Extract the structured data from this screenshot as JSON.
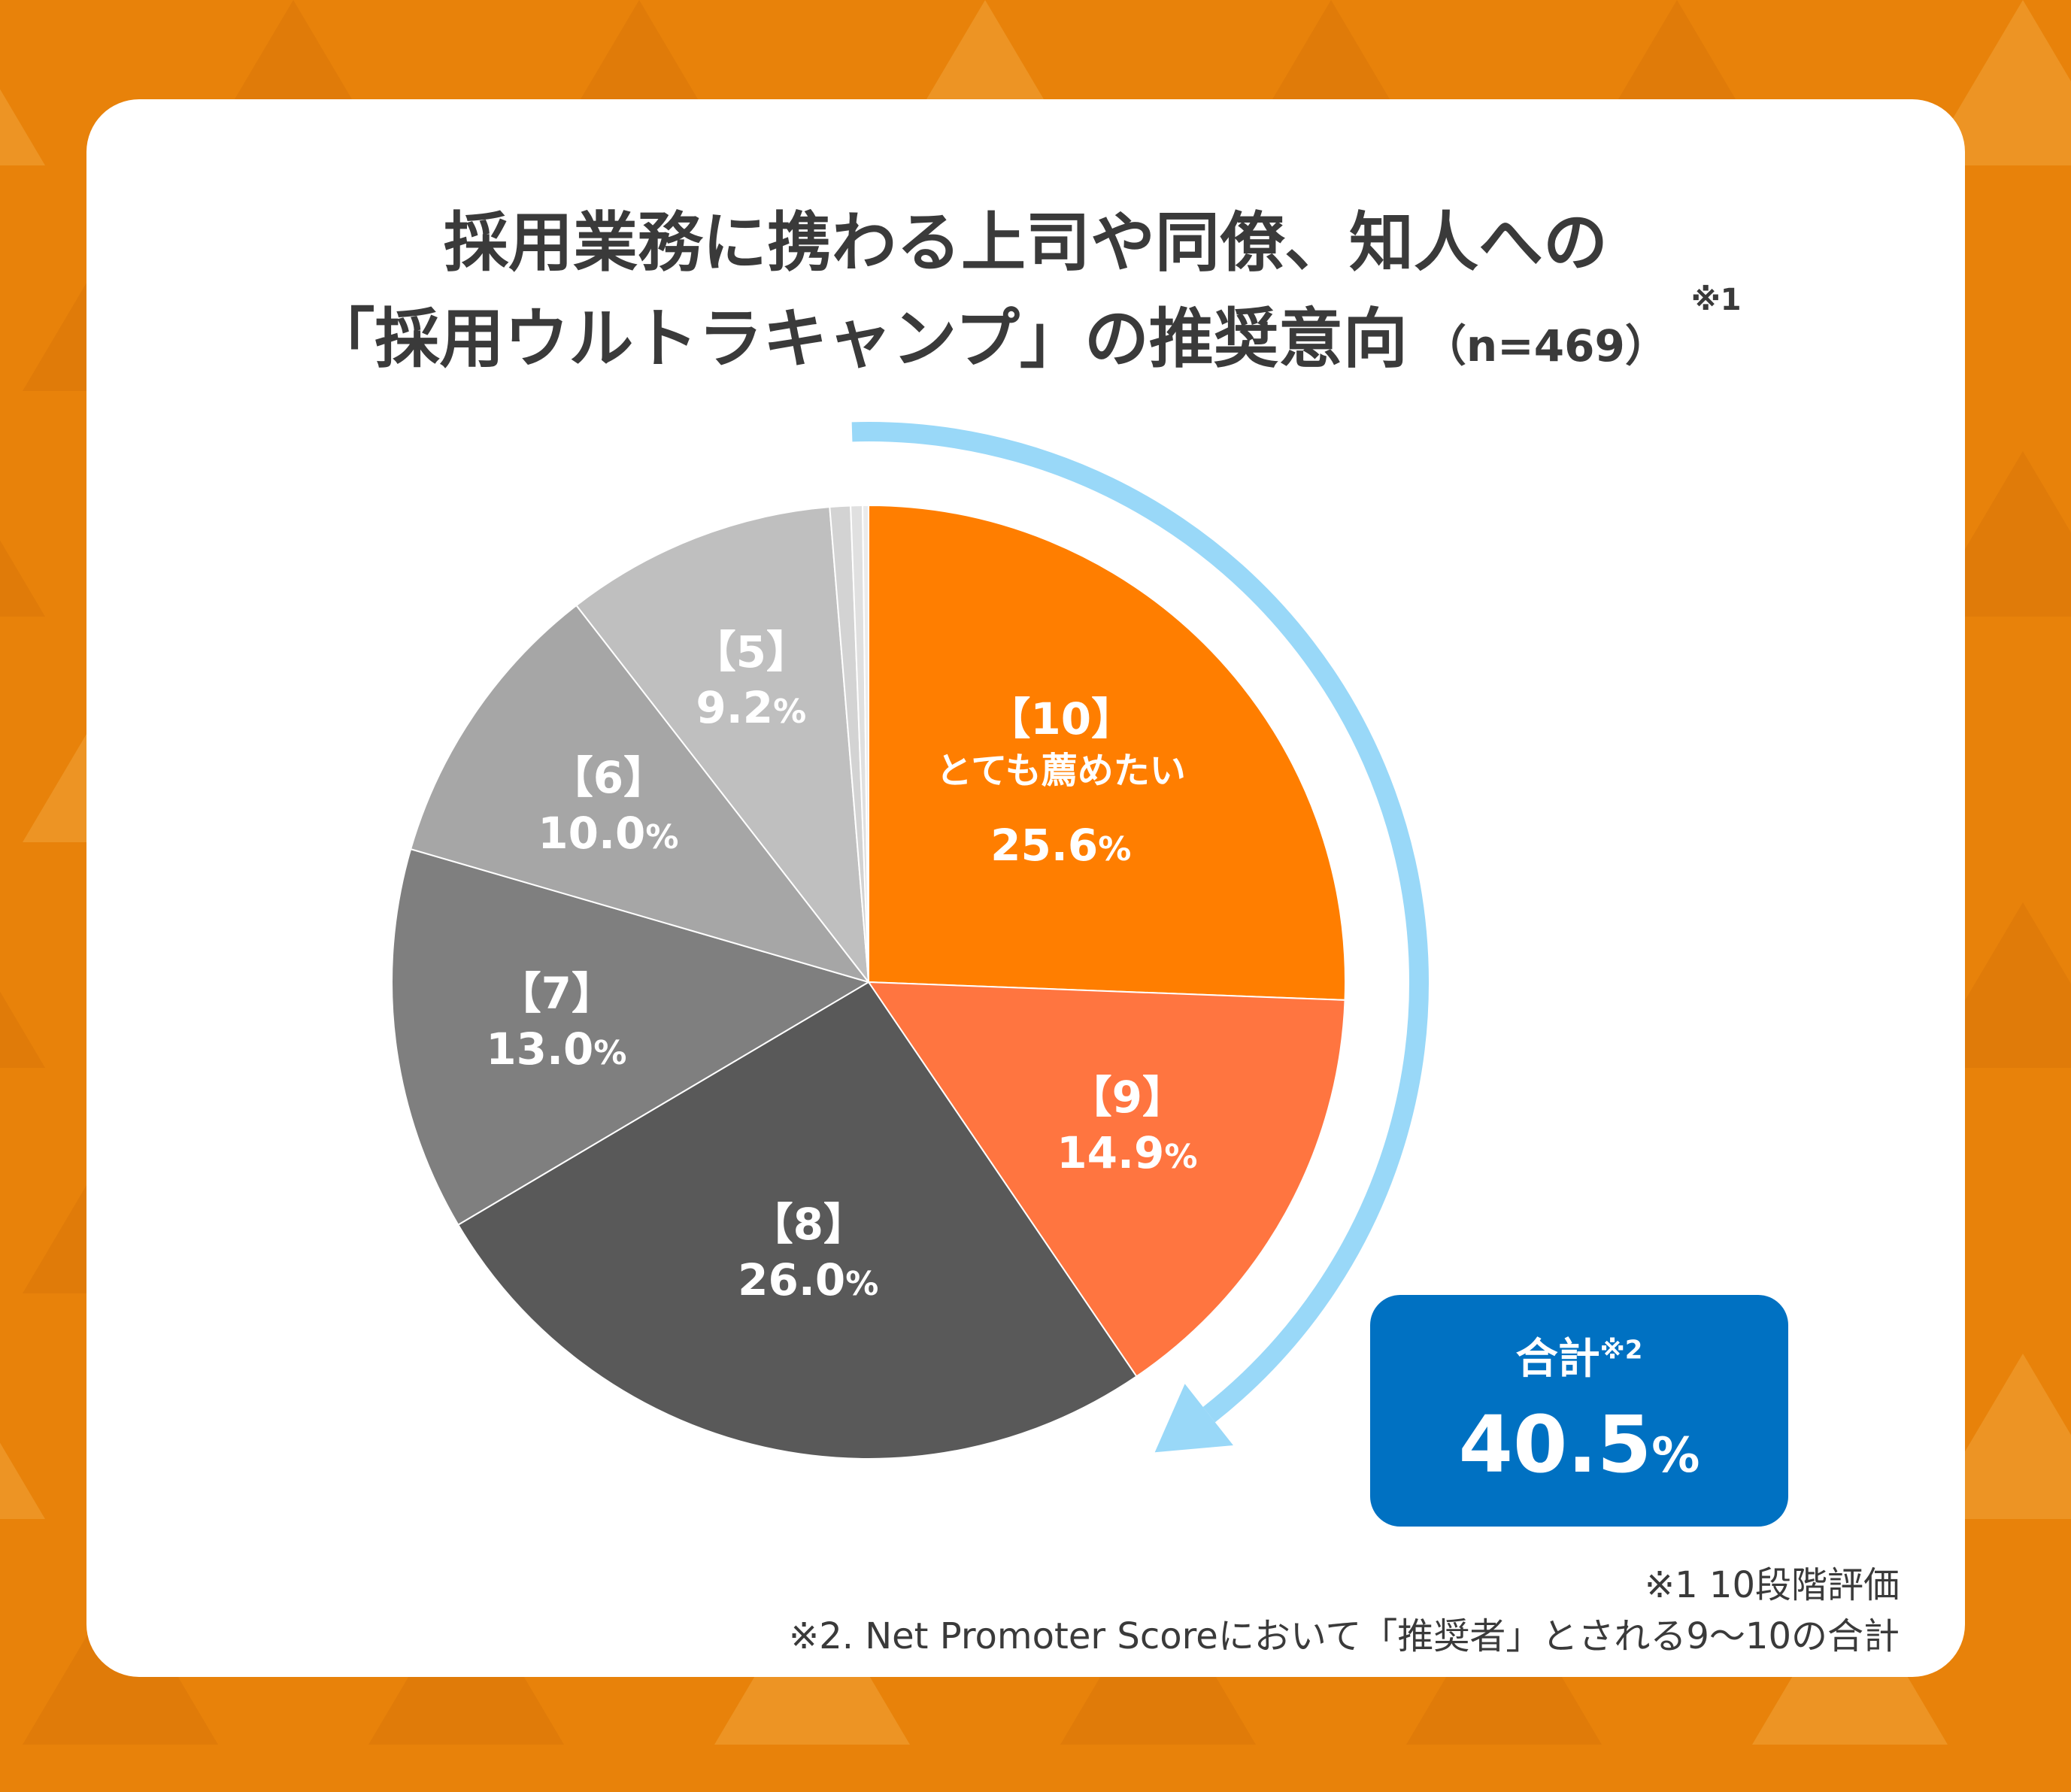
{
  "title": {
    "line1": "採用業務に携わる上司や同僚、知人への",
    "line2": "「採用ウルトラキャンプ」の推奨意向",
    "n": "（n=469）",
    "footnote_ref": "※1"
  },
  "chart_data": {
    "type": "pie",
    "start": "12 o'clock",
    "direction": "clockwise",
    "slices": [
      {
        "category": "【10】",
        "sublabel": "とても薦めたい",
        "value": 25.6,
        "display": "25.6",
        "color": "#ff7e00"
      },
      {
        "category": "【9】",
        "value": 14.9,
        "display": "14.9",
        "color": "#ff7540"
      },
      {
        "category": "【8】",
        "value": 26.0,
        "display": "26.0",
        "color": "#595959"
      },
      {
        "category": "【7】",
        "value": 13.0,
        "display": "13.0",
        "color": "#7f7f7f"
      },
      {
        "category": "【6】",
        "value": 10.0,
        "display": "10.0",
        "color": "#a6a6a6"
      },
      {
        "category": "【5】",
        "value": 9.2,
        "display": "9.2",
        "color": "#bfbfbf"
      },
      {
        "category": "",
        "value": 0.7,
        "color": "#d3d3d3"
      },
      {
        "category": "",
        "value": 0.4,
        "color": "#e0e0e0"
      },
      {
        "category": "",
        "value": 0.2,
        "color": "#ebebeb"
      }
    ],
    "percent_sign": "%",
    "arrow_color": "#99d8f8"
  },
  "total": {
    "label": "合計",
    "note_ref": "※2",
    "value": "40.5",
    "unit": "%",
    "color": "#0071c2"
  },
  "notes": {
    "note1": "※1  10段階評価",
    "note2": "※2. Net Promoter Scoreにおいて「推奨者」とされる9〜10の合計"
  }
}
